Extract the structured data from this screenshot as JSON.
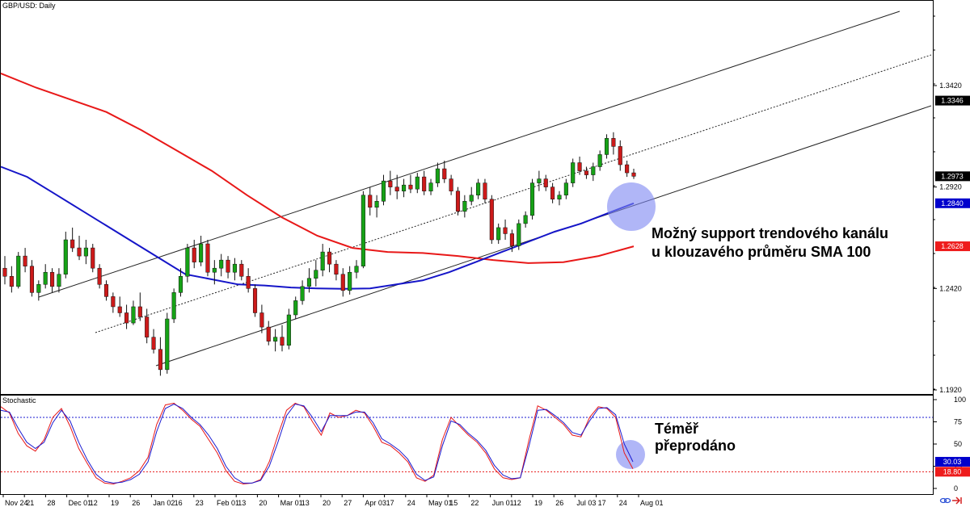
{
  "header": {
    "symbol_label": "GBP/USD: Daily",
    "stoch_label": "Stochastic"
  },
  "chart_data": [
    {
      "type": "candlestick",
      "title": "GBP/USD: Daily",
      "ylim": [
        1.188,
        1.372
      ],
      "y_ticks": [
        "1.3420",
        "1.2920",
        "1.2420",
        "1.1920"
      ],
      "x_tick_labels": [
        "Nov 24",
        "21",
        "28",
        "Dec 01",
        "12",
        "19",
        "26",
        "Jan 02",
        "16",
        "23",
        "Feb 01",
        "13",
        "20",
        "Mar 01",
        "13",
        "20",
        "27",
        "Apr 03",
        "17",
        "24",
        "May 01",
        "15",
        "22",
        "Jun 01",
        "12",
        "19",
        "26",
        "Jul 03",
        "17",
        "24",
        "Aug 01"
      ],
      "price_badges": [
        {
          "value": "1.3346",
          "color": "#000000"
        },
        {
          "value": "1.2973",
          "color": "#000000"
        },
        {
          "value": "1.2840",
          "color": "#0000cc"
        },
        {
          "value": "1.2628",
          "color": "#ee1c1c"
        }
      ],
      "series": [
        {
          "name": "SMA 100",
          "color": "#1515c8",
          "values": [
            1.302,
            1.297,
            1.289,
            1.281,
            1.273,
            1.265,
            1.257,
            1.249,
            1.2465,
            1.244,
            1.2435,
            1.2425,
            1.242,
            1.2418,
            1.242,
            1.244,
            1.246,
            1.25,
            1.255,
            1.26,
            1.265,
            1.27,
            1.274,
            1.279,
            1.284
          ]
        },
        {
          "name": "SMA 200",
          "color": "#e81818",
          "values": [
            1.348,
            1.341,
            1.335,
            1.329,
            1.32,
            1.31,
            1.3,
            1.288,
            1.277,
            1.268,
            1.262,
            1.26,
            1.2595,
            1.258,
            1.256,
            1.2545,
            1.255,
            1.258,
            1.2628
          ]
        }
      ],
      "channel": {
        "color": "#333333",
        "lines": [
          "upper",
          "midline (dotted)",
          "lower"
        ]
      },
      "candles": [
        {
          "o": 1.252,
          "h": 1.258,
          "l": 1.244,
          "c": 1.248
        },
        {
          "o": 1.248,
          "h": 1.253,
          "l": 1.24,
          "c": 1.243
        },
        {
          "o": 1.243,
          "h": 1.26,
          "l": 1.242,
          "c": 1.258
        },
        {
          "o": 1.258,
          "h": 1.262,
          "l": 1.25,
          "c": 1.253
        },
        {
          "o": 1.253,
          "h": 1.256,
          "l": 1.238,
          "c": 1.24
        },
        {
          "o": 1.24,
          "h": 1.246,
          "l": 1.236,
          "c": 1.244
        },
        {
          "o": 1.244,
          "h": 1.254,
          "l": 1.242,
          "c": 1.25
        },
        {
          "o": 1.25,
          "h": 1.252,
          "l": 1.24,
          "c": 1.243
        },
        {
          "o": 1.243,
          "h": 1.252,
          "l": 1.24,
          "c": 1.249
        },
        {
          "o": 1.249,
          "h": 1.27,
          "l": 1.247,
          "c": 1.266
        },
        {
          "o": 1.266,
          "h": 1.272,
          "l": 1.26,
          "c": 1.262
        },
        {
          "o": 1.262,
          "h": 1.268,
          "l": 1.256,
          "c": 1.258
        },
        {
          "o": 1.258,
          "h": 1.266,
          "l": 1.254,
          "c": 1.262
        },
        {
          "o": 1.262,
          "h": 1.264,
          "l": 1.25,
          "c": 1.252
        },
        {
          "o": 1.252,
          "h": 1.254,
          "l": 1.242,
          "c": 1.244
        },
        {
          "o": 1.244,
          "h": 1.246,
          "l": 1.236,
          "c": 1.238
        },
        {
          "o": 1.238,
          "h": 1.24,
          "l": 1.23,
          "c": 1.233
        },
        {
          "o": 1.233,
          "h": 1.238,
          "l": 1.228,
          "c": 1.23
        },
        {
          "o": 1.23,
          "h": 1.234,
          "l": 1.222,
          "c": 1.225
        },
        {
          "o": 1.225,
          "h": 1.236,
          "l": 1.224,
          "c": 1.233
        },
        {
          "o": 1.233,
          "h": 1.24,
          "l": 1.226,
          "c": 1.228
        },
        {
          "o": 1.228,
          "h": 1.232,
          "l": 1.215,
          "c": 1.218
        },
        {
          "o": 1.218,
          "h": 1.222,
          "l": 1.21,
          "c": 1.212
        },
        {
          "o": 1.212,
          "h": 1.218,
          "l": 1.199,
          "c": 1.202
        },
        {
          "o": 1.202,
          "h": 1.23,
          "l": 1.2,
          "c": 1.227
        },
        {
          "o": 1.227,
          "h": 1.242,
          "l": 1.225,
          "c": 1.24
        },
        {
          "o": 1.24,
          "h": 1.252,
          "l": 1.238,
          "c": 1.248
        },
        {
          "o": 1.248,
          "h": 1.264,
          "l": 1.245,
          "c": 1.262
        },
        {
          "o": 1.262,
          "h": 1.266,
          "l": 1.252,
          "c": 1.255
        },
        {
          "o": 1.255,
          "h": 1.268,
          "l": 1.253,
          "c": 1.264
        },
        {
          "o": 1.264,
          "h": 1.266,
          "l": 1.248,
          "c": 1.25
        },
        {
          "o": 1.25,
          "h": 1.256,
          "l": 1.244,
          "c": 1.252
        },
        {
          "o": 1.252,
          "h": 1.259,
          "l": 1.248,
          "c": 1.256
        },
        {
          "o": 1.256,
          "h": 1.258,
          "l": 1.247,
          "c": 1.25
        },
        {
          "o": 1.25,
          "h": 1.257,
          "l": 1.246,
          "c": 1.254
        },
        {
          "o": 1.254,
          "h": 1.256,
          "l": 1.246,
          "c": 1.248
        },
        {
          "o": 1.248,
          "h": 1.252,
          "l": 1.24,
          "c": 1.242
        },
        {
          "o": 1.242,
          "h": 1.244,
          "l": 1.228,
          "c": 1.23
        },
        {
          "o": 1.23,
          "h": 1.234,
          "l": 1.22,
          "c": 1.223
        },
        {
          "o": 1.223,
          "h": 1.226,
          "l": 1.214,
          "c": 1.216
        },
        {
          "o": 1.216,
          "h": 1.222,
          "l": 1.211,
          "c": 1.218
        },
        {
          "o": 1.218,
          "h": 1.224,
          "l": 1.211,
          "c": 1.214
        },
        {
          "o": 1.214,
          "h": 1.232,
          "l": 1.212,
          "c": 1.229
        },
        {
          "o": 1.229,
          "h": 1.238,
          "l": 1.227,
          "c": 1.236
        },
        {
          "o": 1.236,
          "h": 1.246,
          "l": 1.234,
          "c": 1.243
        },
        {
          "o": 1.243,
          "h": 1.252,
          "l": 1.24,
          "c": 1.247
        },
        {
          "o": 1.247,
          "h": 1.256,
          "l": 1.243,
          "c": 1.251
        },
        {
          "o": 1.251,
          "h": 1.264,
          "l": 1.248,
          "c": 1.26
        },
        {
          "o": 1.26,
          "h": 1.262,
          "l": 1.25,
          "c": 1.254
        },
        {
          "o": 1.254,
          "h": 1.256,
          "l": 1.246,
          "c": 1.249
        },
        {
          "o": 1.249,
          "h": 1.252,
          "l": 1.238,
          "c": 1.241
        },
        {
          "o": 1.241,
          "h": 1.253,
          "l": 1.239,
          "c": 1.25
        },
        {
          "o": 1.25,
          "h": 1.256,
          "l": 1.247,
          "c": 1.253
        },
        {
          "o": 1.253,
          "h": 1.29,
          "l": 1.252,
          "c": 1.288
        },
        {
          "o": 1.288,
          "h": 1.292,
          "l": 1.278,
          "c": 1.282
        },
        {
          "o": 1.282,
          "h": 1.288,
          "l": 1.277,
          "c": 1.285
        },
        {
          "o": 1.285,
          "h": 1.298,
          "l": 1.283,
          "c": 1.295
        },
        {
          "o": 1.295,
          "h": 1.3,
          "l": 1.288,
          "c": 1.292
        },
        {
          "o": 1.292,
          "h": 1.298,
          "l": 1.286,
          "c": 1.29
        },
        {
          "o": 1.29,
          "h": 1.296,
          "l": 1.287,
          "c": 1.293
        },
        {
          "o": 1.293,
          "h": 1.298,
          "l": 1.289,
          "c": 1.291
        },
        {
          "o": 1.291,
          "h": 1.299,
          "l": 1.289,
          "c": 1.297
        },
        {
          "o": 1.297,
          "h": 1.3,
          "l": 1.288,
          "c": 1.29
        },
        {
          "o": 1.29,
          "h": 1.296,
          "l": 1.288,
          "c": 1.294
        },
        {
          "o": 1.294,
          "h": 1.304,
          "l": 1.292,
          "c": 1.301
        },
        {
          "o": 1.301,
          "h": 1.305,
          "l": 1.294,
          "c": 1.296
        },
        {
          "o": 1.296,
          "h": 1.298,
          "l": 1.288,
          "c": 1.29
        },
        {
          "o": 1.29,
          "h": 1.292,
          "l": 1.278,
          "c": 1.28
        },
        {
          "o": 1.28,
          "h": 1.288,
          "l": 1.277,
          "c": 1.285
        },
        {
          "o": 1.285,
          "h": 1.292,
          "l": 1.283,
          "c": 1.288
        },
        {
          "o": 1.288,
          "h": 1.296,
          "l": 1.286,
          "c": 1.294
        },
        {
          "o": 1.294,
          "h": 1.296,
          "l": 1.284,
          "c": 1.286
        },
        {
          "o": 1.286,
          "h": 1.288,
          "l": 1.264,
          "c": 1.266
        },
        {
          "o": 1.266,
          "h": 1.274,
          "l": 1.264,
          "c": 1.272
        },
        {
          "o": 1.272,
          "h": 1.276,
          "l": 1.266,
          "c": 1.269
        },
        {
          "o": 1.269,
          "h": 1.271,
          "l": 1.26,
          "c": 1.263
        },
        {
          "o": 1.263,
          "h": 1.276,
          "l": 1.261,
          "c": 1.274
        },
        {
          "o": 1.274,
          "h": 1.28,
          "l": 1.272,
          "c": 1.278
        },
        {
          "o": 1.278,
          "h": 1.296,
          "l": 1.276,
          "c": 1.294
        },
        {
          "o": 1.294,
          "h": 1.3,
          "l": 1.29,
          "c": 1.296
        },
        {
          "o": 1.296,
          "h": 1.298,
          "l": 1.29,
          "c": 1.292
        },
        {
          "o": 1.292,
          "h": 1.294,
          "l": 1.284,
          "c": 1.286
        },
        {
          "o": 1.286,
          "h": 1.29,
          "l": 1.283,
          "c": 1.288
        },
        {
          "o": 1.288,
          "h": 1.296,
          "l": 1.286,
          "c": 1.294
        },
        {
          "o": 1.294,
          "h": 1.306,
          "l": 1.292,
          "c": 1.304
        },
        {
          "o": 1.304,
          "h": 1.307,
          "l": 1.298,
          "c": 1.3
        },
        {
          "o": 1.3,
          "h": 1.302,
          "l": 1.296,
          "c": 1.298
        },
        {
          "o": 1.298,
          "h": 1.304,
          "l": 1.295,
          "c": 1.302
        },
        {
          "o": 1.302,
          "h": 1.31,
          "l": 1.3,
          "c": 1.308
        },
        {
          "o": 1.308,
          "h": 1.318,
          "l": 1.306,
          "c": 1.316
        },
        {
          "o": 1.316,
          "h": 1.319,
          "l": 1.308,
          "c": 1.312
        },
        {
          "o": 1.312,
          "h": 1.315,
          "l": 1.3,
          "c": 1.303
        },
        {
          "o": 1.303,
          "h": 1.305,
          "l": 1.297,
          "c": 1.299
        },
        {
          "o": 1.299,
          "h": 1.301,
          "l": 1.296,
          "c": 1.2973
        }
      ]
    },
    {
      "type": "line",
      "title": "Stochastic",
      "ylim": [
        0,
        100
      ],
      "y_ticks": [
        "100",
        "75",
        "50",
        "25",
        "0"
      ],
      "levels": [
        {
          "value": 80,
          "color": "#1a1ad0",
          "style": "dotted"
        },
        {
          "value": 18.8,
          "color": "#e81818",
          "style": "dotted"
        }
      ],
      "badges": [
        {
          "value": "30.03",
          "color": "#0000cc"
        },
        {
          "value": "18.80",
          "color": "#ee1c1c"
        }
      ],
      "series": [
        {
          "name": "%K",
          "color": "#e81818",
          "values": [
            92,
            85,
            62,
            48,
            42,
            55,
            80,
            90,
            70,
            45,
            28,
            12,
            6,
            5,
            8,
            12,
            20,
            35,
            72,
            94,
            96,
            88,
            78,
            70,
            55,
            40,
            20,
            8,
            5,
            6,
            10,
            30,
            60,
            88,
            96,
            92,
            75,
            60,
            85,
            80,
            82,
            88,
            85,
            70,
            52,
            48,
            40,
            30,
            12,
            8,
            15,
            55,
            80,
            70,
            60,
            52,
            40,
            22,
            12,
            10,
            12,
            55,
            93,
            88,
            80,
            72,
            60,
            58,
            80,
            92,
            90,
            80,
            40,
            22
          ]
        },
        {
          "name": "%D",
          "color": "#1a1ad0",
          "values": [
            88,
            86,
            68,
            52,
            45,
            52,
            74,
            88,
            76,
            52,
            32,
            16,
            8,
            6,
            7,
            10,
            16,
            30,
            64,
            90,
            95,
            90,
            80,
            72,
            60,
            45,
            25,
            12,
            6,
            6,
            9,
            25,
            52,
            82,
            95,
            93,
            80,
            64,
            82,
            82,
            82,
            86,
            86,
            74,
            56,
            50,
            43,
            33,
            16,
            9,
            13,
            48,
            76,
            72,
            62,
            54,
            43,
            26,
            15,
            11,
            12,
            48,
            88,
            89,
            82,
            74,
            63,
            60,
            76,
            90,
            91,
            83,
            50,
            30
          ]
        }
      ]
    }
  ],
  "annotations": {
    "support_line1": "Možný support trendového kanálu",
    "support_line2": "u klouzavého průměru SMA 100",
    "oversold_line1": "Téměř",
    "oversold_line2": "přeprodáno"
  },
  "highlight_color": "#7b85f2",
  "icons": [
    "link-icon",
    "arrow-right-icon"
  ]
}
